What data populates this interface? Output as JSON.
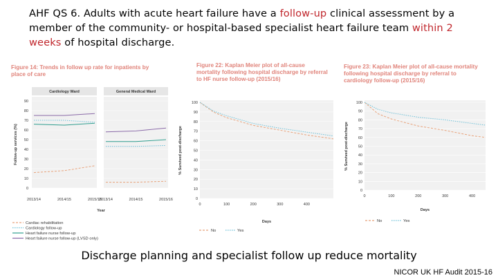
{
  "heading": {
    "part1": "AHF QS 6. Adults with acute heart failure have a ",
    "highlight1": "follow‑up",
    "part2": " clinical assessment by a member of the community- or hospital‑based specialist heart failure team ",
    "highlight2": "within 2 weeks",
    "part3": " of hospital discharge."
  },
  "figure14": {
    "title": "Figure 14: Trends in follow up rate for inpatients by place of care",
    "panel_left": "Cardiology Ward",
    "panel_right": "General Medical Ward",
    "ylabel": "Follow-up services (%)",
    "xlabel": "Year",
    "yticks": [
      "90",
      "80",
      "70",
      "60",
      "50",
      "40",
      "30",
      "20",
      "10",
      "0"
    ],
    "xticks": [
      "2013/14",
      "2014/15",
      "2015/16"
    ],
    "legend": [
      "Cardiac rehabilitation",
      "Cardiology follow-up",
      "Heart failure nurse follow-up",
      "Heart failure nurse follow-up (LVSD only)"
    ]
  },
  "figure22": {
    "title": "Figure 22: Kaplan Meier plot of all-cause mortality following hospital discharge by referral to HF nurse follow-up (2015/16)",
    "ylabel": "% Survived post-discharge",
    "xlabel": "Days",
    "yticks": [
      "100",
      "90",
      "80",
      "70",
      "60",
      "50",
      "40",
      "30",
      "20",
      "10",
      "0"
    ],
    "xticks": [
      "0",
      "100",
      "200",
      "300",
      "400"
    ],
    "legend": [
      "No",
      "Yes"
    ]
  },
  "figure23": {
    "title": "Figure 23: Kaplan Meier plot of all-cause mortality following hospital discharge by referral to cardiology follow-up (2015/16)",
    "ylabel": "% Survived post-discharge",
    "xlabel": "Days",
    "yticks": [
      "100",
      "90",
      "80",
      "70",
      "60",
      "50",
      "40",
      "30",
      "20",
      "10",
      "0"
    ],
    "xticks": [
      "0",
      "100",
      "200",
      "300",
      "400"
    ],
    "legend": [
      "No",
      "Yes"
    ]
  },
  "chart_data": [
    {
      "type": "line",
      "title": "Cardiology Ward",
      "x": [
        "2013/14",
        "2014/15",
        "2015/16"
      ],
      "ylim": [
        0,
        90
      ],
      "ylabel": "Follow-up services (%)",
      "xlabel": "Year",
      "series": [
        {
          "name": "Cardiac rehabilitation",
          "values": [
            16,
            18,
            23
          ],
          "color": "#e8a27a",
          "dash": "3,2"
        },
        {
          "name": "Cardiology follow-up",
          "values": [
            70,
            70,
            68
          ],
          "color": "#6cc0d8",
          "dash": "1.5,1.5"
        },
        {
          "name": "Heart failure nurse follow-up",
          "values": [
            66,
            65,
            67
          ],
          "color": "#2f9e8f",
          "dash": ""
        },
        {
          "name": "Heart failure nurse follow-up (LVSD only)",
          "values": [
            75,
            75,
            77
          ],
          "color": "#8a6aa8",
          "dash": ""
        }
      ]
    },
    {
      "type": "line",
      "title": "General Medical Ward",
      "x": [
        "2013/14",
        "2014/15",
        "2015/16"
      ],
      "ylim": [
        0,
        90
      ],
      "series": [
        {
          "name": "Cardiac rehabilitation",
          "values": [
            6,
            6,
            7
          ],
          "color": "#e8a27a",
          "dash": "3,2"
        },
        {
          "name": "Cardiology follow-up",
          "values": [
            43,
            43,
            44
          ],
          "color": "#6cc0d8",
          "dash": "1.5,1.5"
        },
        {
          "name": "Heart failure nurse follow-up",
          "values": [
            48,
            48,
            50
          ],
          "color": "#2f9e8f",
          "dash": ""
        },
        {
          "name": "Heart failure nurse follow-up (LVSD only)",
          "values": [
            58,
            59,
            62
          ],
          "color": "#8a6aa8",
          "dash": ""
        }
      ]
    },
    {
      "type": "line",
      "title": "Figure 22: Kaplan Meier plot of all-cause mortality following hospital discharge by referral to HF nurse follow-up (2015/16)",
      "xlabel": "Days",
      "ylabel": "% Survived post-discharge",
      "xlim": [
        0,
        500
      ],
      "ylim": [
        0,
        100
      ],
      "series": [
        {
          "name": "No",
          "x": [
            0,
            50,
            100,
            200,
            300,
            400,
            500
          ],
          "values": [
            100,
            90,
            84,
            76,
            71,
            66,
            62
          ],
          "color": "#e8a27a",
          "dash": "3,2"
        },
        {
          "name": "Yes",
          "x": [
            0,
            50,
            100,
            200,
            300,
            400,
            500
          ],
          "values": [
            100,
            91,
            86,
            78,
            73,
            69,
            65
          ],
          "color": "#6cc0d8",
          "dash": "1.5,1.5"
        }
      ]
    },
    {
      "type": "line",
      "title": "Figure 23: Kaplan Meier plot of all-cause mortality following hospital discharge by referral to cardiology follow-up (2015/16)",
      "xlabel": "Days",
      "ylabel": "% Survived post-discharge",
      "xlim": [
        0,
        450
      ],
      "ylim": [
        0,
        100
      ],
      "series": [
        {
          "name": "No",
          "x": [
            0,
            50,
            100,
            200,
            300,
            400,
            450
          ],
          "values": [
            100,
            87,
            81,
            73,
            68,
            62,
            60
          ],
          "color": "#e8a27a",
          "dash": "3,2"
        },
        {
          "name": "Yes",
          "x": [
            0,
            50,
            100,
            200,
            300,
            400,
            450
          ],
          "values": [
            100,
            92,
            88,
            83,
            80,
            76,
            74
          ],
          "color": "#6cc0d8",
          "dash": "1.5,1.5"
        }
      ]
    }
  ],
  "caption": "Discharge planning and specialist follow up reduce mortality",
  "source": "NICOR UK HF Audit 2015-16"
}
